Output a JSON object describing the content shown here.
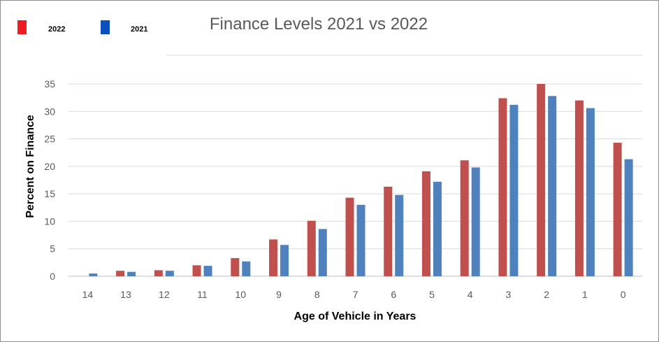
{
  "chart_data": {
    "type": "bar",
    "title": "Finance Levels 2021 vs 2022",
    "xlabel": "Age of Vehicle in Years",
    "ylabel": "Percent on Finance",
    "categories": [
      "14",
      "13",
      "12",
      "11",
      "10",
      "9",
      "8",
      "7",
      "6",
      "5",
      "4",
      "3",
      "2",
      "1",
      "0"
    ],
    "series": [
      {
        "name": "2022",
        "color": "#c0504d",
        "values": [
          0,
          1.0,
          1.1,
          2.0,
          3.3,
          6.7,
          10.1,
          14.3,
          16.3,
          19.1,
          21.1,
          32.4,
          35.0,
          32.0,
          24.3
        ]
      },
      {
        "name": "2021",
        "color": "#4f81bd",
        "values": [
          0.5,
          0.8,
          1.0,
          1.9,
          2.7,
          5.7,
          8.6,
          13.0,
          14.8,
          17.2,
          19.8,
          31.2,
          32.8,
          30.6,
          21.3
        ]
      }
    ],
    "ylim": [
      0,
      35
    ],
    "yticks": [
      0,
      5,
      10,
      15,
      20,
      25,
      30,
      35
    ],
    "grid": true,
    "legend": {
      "placement": "top-left",
      "items": [
        {
          "label": "2022",
          "color": "#ee1c24"
        },
        {
          "label": "2021",
          "color": "#0f4fbd"
        }
      ]
    }
  }
}
